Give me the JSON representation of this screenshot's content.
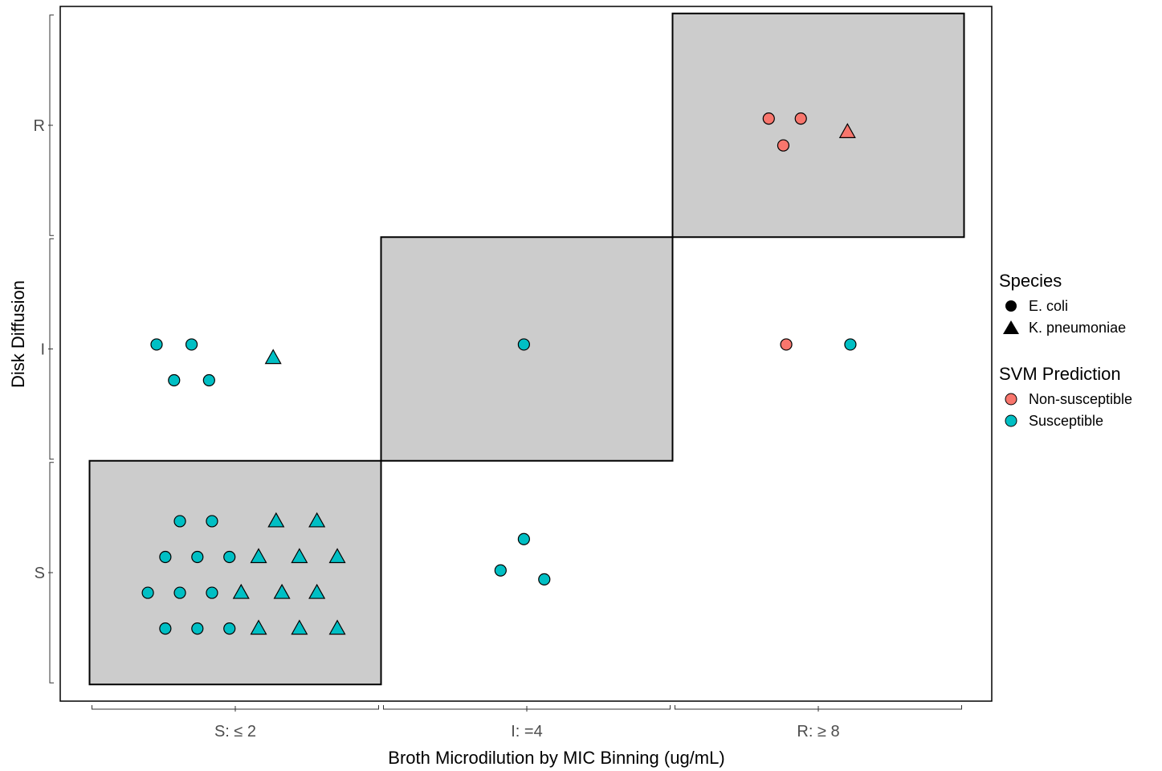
{
  "chart_data": {
    "type": "scatter",
    "xlabel": "Broth Microdilution by MIC Binning (ug/mL)",
    "ylabel": "Disk Diffusion",
    "x_categories": [
      "S: ≤ 2",
      "I: =4",
      "R: ≥ 8"
    ],
    "y_categories": [
      "S",
      "I",
      "R"
    ],
    "agreement_boxes": [
      {
        "x": "S: ≤ 2",
        "y": "S"
      },
      {
        "x": "I: =4",
        "y": "I"
      },
      {
        "x": "R: ≥ 8",
        "y": "R"
      }
    ],
    "box_fill": "#cccccc",
    "legend": {
      "position": "right",
      "species": {
        "title": "Species",
        "items": [
          {
            "label": "E. coli",
            "shape": "circle"
          },
          {
            "label": "K. pneumoniae",
            "shape": "triangle"
          }
        ]
      },
      "prediction": {
        "title": "SVM Prediction",
        "items": [
          {
            "label": "Non-susceptible",
            "color": "#F8766D"
          },
          {
            "label": "Susceptible",
            "color": "#00BFC4"
          }
        ]
      }
    },
    "points": [
      {
        "x": 0.76,
        "y": 0.75,
        "species": "E. coli",
        "prediction": "Susceptible"
      },
      {
        "x": 0.87,
        "y": 0.75,
        "species": "E. coli",
        "prediction": "Susceptible"
      },
      {
        "x": 0.98,
        "y": 0.75,
        "species": "E. coli",
        "prediction": "Susceptible"
      },
      {
        "x": 0.7,
        "y": 0.91,
        "species": "E. coli",
        "prediction": "Susceptible"
      },
      {
        "x": 0.81,
        "y": 0.91,
        "species": "E. coli",
        "prediction": "Susceptible"
      },
      {
        "x": 0.92,
        "y": 0.91,
        "species": "E. coli",
        "prediction": "Susceptible"
      },
      {
        "x": 0.76,
        "y": 1.07,
        "species": "E. coli",
        "prediction": "Susceptible"
      },
      {
        "x": 0.87,
        "y": 1.07,
        "species": "E. coli",
        "prediction": "Susceptible"
      },
      {
        "x": 0.98,
        "y": 1.07,
        "species": "E. coli",
        "prediction": "Susceptible"
      },
      {
        "x": 0.81,
        "y": 1.23,
        "species": "E. coli",
        "prediction": "Susceptible"
      },
      {
        "x": 0.92,
        "y": 1.23,
        "species": "E. coli",
        "prediction": "Susceptible"
      },
      {
        "x": 1.08,
        "y": 0.75,
        "species": "K. pneumoniae",
        "prediction": "Susceptible"
      },
      {
        "x": 1.22,
        "y": 0.75,
        "species": "K. pneumoniae",
        "prediction": "Susceptible"
      },
      {
        "x": 1.35,
        "y": 0.75,
        "species": "K. pneumoniae",
        "prediction": "Susceptible"
      },
      {
        "x": 1.02,
        "y": 0.91,
        "species": "K. pneumoniae",
        "prediction": "Susceptible"
      },
      {
        "x": 1.16,
        "y": 0.91,
        "species": "K. pneumoniae",
        "prediction": "Susceptible"
      },
      {
        "x": 1.28,
        "y": 0.91,
        "species": "K. pneumoniae",
        "prediction": "Susceptible"
      },
      {
        "x": 1.08,
        "y": 1.07,
        "species": "K. pneumoniae",
        "prediction": "Susceptible"
      },
      {
        "x": 1.22,
        "y": 1.07,
        "species": "K. pneumoniae",
        "prediction": "Susceptible"
      },
      {
        "x": 1.35,
        "y": 1.07,
        "species": "K. pneumoniae",
        "prediction": "Susceptible"
      },
      {
        "x": 1.14,
        "y": 1.23,
        "species": "K. pneumoniae",
        "prediction": "Susceptible"
      },
      {
        "x": 1.28,
        "y": 1.23,
        "species": "K. pneumoniae",
        "prediction": "Susceptible"
      },
      {
        "x": 0.73,
        "y": 2.02,
        "species": "E. coli",
        "prediction": "Susceptible"
      },
      {
        "x": 0.85,
        "y": 2.02,
        "species": "E. coli",
        "prediction": "Susceptible"
      },
      {
        "x": 0.79,
        "y": 1.86,
        "species": "E. coli",
        "prediction": "Susceptible"
      },
      {
        "x": 0.91,
        "y": 1.86,
        "species": "E. coli",
        "prediction": "Susceptible"
      },
      {
        "x": 1.13,
        "y": 1.96,
        "species": "K. pneumoniae",
        "prediction": "Susceptible"
      },
      {
        "x": 1.99,
        "y": 2.02,
        "species": "E. coli",
        "prediction": "Susceptible"
      },
      {
        "x": 1.99,
        "y": 1.15,
        "species": "E. coli",
        "prediction": "Susceptible"
      },
      {
        "x": 1.91,
        "y": 1.01,
        "species": "E. coli",
        "prediction": "Susceptible"
      },
      {
        "x": 2.06,
        "y": 0.97,
        "species": "E. coli",
        "prediction": "Susceptible"
      },
      {
        "x": 2.89,
        "y": 2.02,
        "species": "E. coli",
        "prediction": "Non-susceptible"
      },
      {
        "x": 3.11,
        "y": 2.02,
        "species": "E. coli",
        "prediction": "Susceptible"
      },
      {
        "x": 2.83,
        "y": 3.03,
        "species": "E. coli",
        "prediction": "Non-susceptible"
      },
      {
        "x": 2.94,
        "y": 3.03,
        "species": "E. coli",
        "prediction": "Non-susceptible"
      },
      {
        "x": 2.88,
        "y": 2.91,
        "species": "E. coli",
        "prediction": "Non-susceptible"
      },
      {
        "x": 3.1,
        "y": 2.97,
        "species": "K. pneumoniae",
        "prediction": "Non-susceptible"
      }
    ]
  }
}
